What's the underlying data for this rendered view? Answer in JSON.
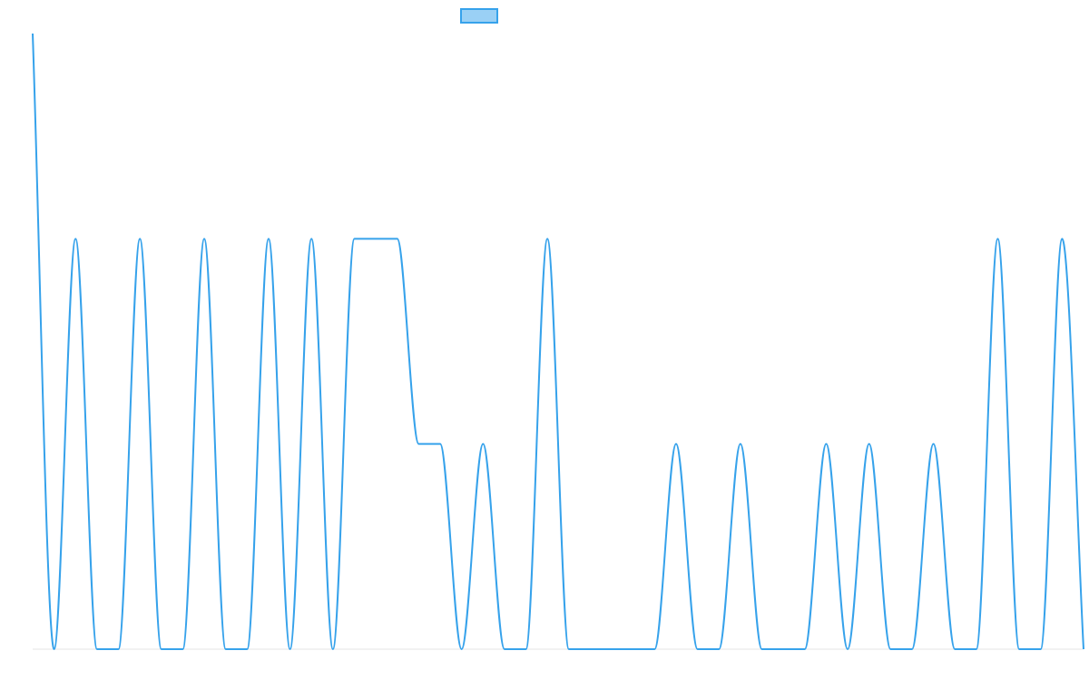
{
  "chart_data": {
    "type": "line",
    "title": "",
    "xlabel": "",
    "ylabel": "",
    "ylim": [
      0,
      3
    ],
    "grid": false,
    "legend": "top",
    "series": [
      {
        "color": "#36a2eb",
        "fill": "#9ad0f5",
        "values": [
          3,
          0,
          2,
          0,
          0,
          2,
          0,
          0,
          2,
          0,
          0,
          2,
          0,
          2,
          0,
          2,
          2,
          2,
          1,
          1,
          0,
          1,
          0,
          0,
          2,
          0,
          0,
          0,
          0,
          0,
          1,
          0,
          0,
          1,
          0,
          0,
          0,
          1,
          0,
          1,
          0,
          0,
          1,
          0,
          0,
          2,
          0,
          0,
          2,
          0
        ]
      }
    ]
  }
}
